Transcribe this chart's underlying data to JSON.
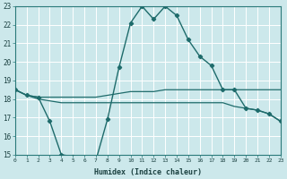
{
  "xlabel": "Humidex (Indice chaleur)",
  "bg_color": "#cce8eb",
  "grid_color": "#ffffff",
  "line_color": "#1e6b6b",
  "x_min": 0,
  "x_max": 23,
  "y_min": 15,
  "y_max": 23,
  "series": [
    {
      "x": [
        0,
        1,
        2,
        3,
        4,
        5,
        6,
        7,
        8,
        9,
        10,
        11,
        12,
        13,
        14,
        15,
        16,
        17,
        18,
        19,
        20,
        21,
        22,
        23
      ],
      "y": [
        18.5,
        18.2,
        18.1,
        18.1,
        18.1,
        18.1,
        18.1,
        18.1,
        18.2,
        18.3,
        18.4,
        18.4,
        18.4,
        18.5,
        18.5,
        18.5,
        18.5,
        18.5,
        18.5,
        18.5,
        18.5,
        18.5,
        18.5,
        18.5
      ],
      "marker": false,
      "lw": 0.9
    },
    {
      "x": [
        0,
        1,
        2,
        3,
        4,
        5,
        6,
        7,
        8,
        9,
        10,
        11,
        12,
        13,
        14,
        15,
        16,
        17,
        18,
        19,
        20,
        21,
        22,
        23
      ],
      "y": [
        18.5,
        18.2,
        18.0,
        17.9,
        17.8,
        17.8,
        17.8,
        17.8,
        17.8,
        17.8,
        17.8,
        17.8,
        17.8,
        17.8,
        17.8,
        17.8,
        17.8,
        17.8,
        17.8,
        17.6,
        17.5,
        17.4,
        17.2,
        16.8
      ],
      "marker": false,
      "lw": 0.9
    },
    {
      "x": [
        0,
        1,
        2,
        3,
        4,
        5,
        6,
        7,
        8,
        9,
        10,
        11,
        12,
        13,
        14,
        15,
        16,
        17,
        18,
        19,
        20,
        21,
        22,
        23
      ],
      "y": [
        18.5,
        18.2,
        18.1,
        16.8,
        15.0,
        14.9,
        14.8,
        14.7,
        16.9,
        19.7,
        22.1,
        23.0,
        22.3,
        23.0,
        22.5,
        21.2,
        20.3,
        19.8,
        18.5,
        18.5,
        17.5,
        17.4,
        17.2,
        16.8
      ],
      "marker": true,
      "lw": 1.0
    }
  ]
}
